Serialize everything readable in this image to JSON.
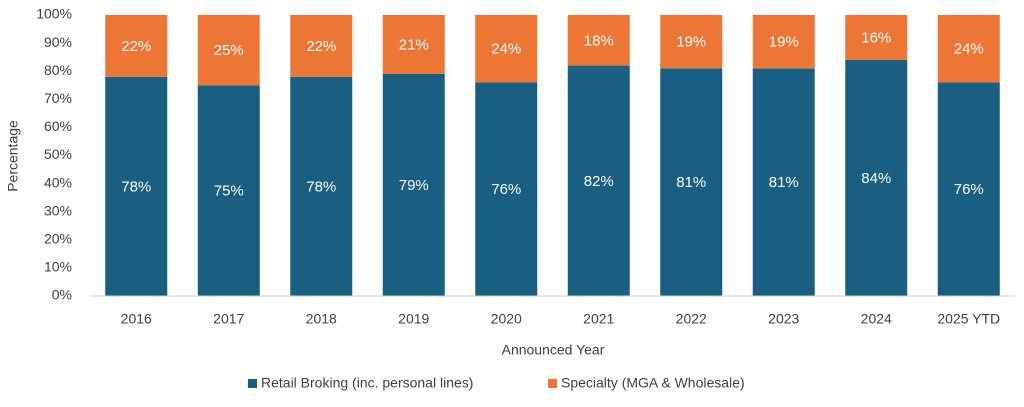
{
  "chart_data": {
    "type": "stacked_bar",
    "x_label": "Announced Year",
    "y_label": "Percentage",
    "categories": [
      "2016",
      "2017",
      "2018",
      "2019",
      "2020",
      "2021",
      "2022",
      "2023",
      "2024",
      "2025 YTD"
    ],
    "series": [
      {
        "name": "Retail Broking (inc. personal lines)",
        "color": "#185f82",
        "values": [
          78,
          75,
          78,
          79,
          76,
          82,
          81,
          81,
          84,
          76
        ],
        "value_labels": [
          "78%",
          "75%",
          "78%",
          "79%",
          "76%",
          "82%",
          "81%",
          "81%",
          "84%",
          "76%"
        ]
      },
      {
        "name": "Specialty (MGA & Wholesale)",
        "color": "#ed7635",
        "values": [
          22,
          25,
          22,
          21,
          24,
          18,
          19,
          19,
          16,
          24
        ],
        "value_labels": [
          "22%",
          "25%",
          "22%",
          "21%",
          "24%",
          "18%",
          "19%",
          "19%",
          "16%",
          "24%"
        ]
      }
    ],
    "ylim": [
      0,
      100
    ],
    "yticks": [
      {
        "value": 0,
        "label": "0%"
      },
      {
        "value": 10,
        "label": "10%"
      },
      {
        "value": 20,
        "label": "20%"
      },
      {
        "value": 30,
        "label": "30%"
      },
      {
        "value": 40,
        "label": "40%"
      },
      {
        "value": 50,
        "label": "50%"
      },
      {
        "value": 60,
        "label": "60%"
      },
      {
        "value": 70,
        "label": "70%"
      },
      {
        "value": 80,
        "label": "80%"
      },
      {
        "value": 90,
        "label": "90%"
      },
      {
        "value": 100,
        "label": "100%"
      }
    ],
    "grid": false,
    "legend": "bottom"
  }
}
